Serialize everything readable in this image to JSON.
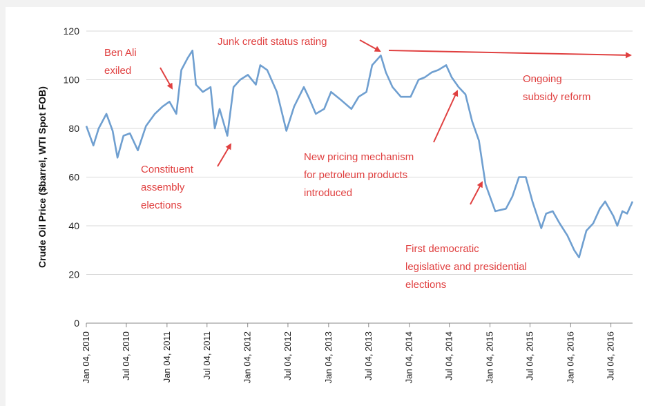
{
  "chart_data": {
    "type": "line",
    "title": "",
    "xlabel": "",
    "ylabel": "Crude Oil Price ($barrel, WTI Spot FOB)",
    "ylim": [
      0,
      120
    ],
    "yticks": [
      "0",
      "20",
      "40",
      "60",
      "80",
      "100",
      "120"
    ],
    "xticks": [
      "Jan 04, 2010",
      "Jul 04, 2010",
      "Jan 04, 2011",
      "Jul 04, 2011",
      "Jan 04, 2012",
      "Jul 04, 2012",
      "Jan 04, 2013",
      "Jul 04, 2013",
      "Jan 04, 2014",
      "Jul 04, 2014",
      "Jan 04, 2015",
      "Jul 04, 2015",
      "Jan 04, 2016",
      "Jul 04, 2016"
    ],
    "grid": true,
    "line_color": "#6f9fd0",
    "annotation_color": "#e04040",
    "series": [
      {
        "x": [
          "2010-01-04",
          "2010-02-05",
          "2010-03-01",
          "2010-04-05",
          "2010-05-03",
          "2010-05-25",
          "2010-06-21",
          "2010-07-20",
          "2010-08-25",
          "2010-10-01",
          "2010-11-10",
          "2010-12-15",
          "2011-01-15",
          "2011-02-15",
          "2011-03-10",
          "2011-04-08",
          "2011-04-29",
          "2011-05-15",
          "2011-06-15",
          "2011-07-20",
          "2011-08-08",
          "2011-08-30",
          "2011-10-04",
          "2011-11-01",
          "2011-12-01",
          "2012-01-05",
          "2012-02-10",
          "2012-03-01",
          "2012-04-01",
          "2012-05-15",
          "2012-06-27",
          "2012-08-01",
          "2012-09-14",
          "2012-10-10",
          "2012-11-07",
          "2012-12-15",
          "2013-01-15",
          "2013-02-25",
          "2013-04-17",
          "2013-05-20",
          "2013-06-24",
          "2013-07-20",
          "2013-08-28",
          "2013-09-20",
          "2013-10-20",
          "2013-11-27",
          "2014-01-10",
          "2014-02-15",
          "2014-03-15",
          "2014-04-15",
          "2014-05-15",
          "2014-06-20",
          "2014-07-15",
          "2014-08-15",
          "2014-09-15",
          "2014-10-15",
          "2014-11-15",
          "2014-12-15",
          "2015-01-28",
          "2015-03-17",
          "2015-04-15",
          "2015-05-15",
          "2015-06-15",
          "2015-07-15",
          "2015-08-24",
          "2015-09-15",
          "2015-10-15",
          "2015-11-15",
          "2015-12-20",
          "2016-01-20",
          "2016-02-11",
          "2016-03-15",
          "2016-04-15",
          "2016-05-15",
          "2016-06-08",
          "2016-07-15",
          "2016-08-02",
          "2016-08-25",
          "2016-09-15",
          "2016-10-10"
        ],
        "y": [
          81,
          73,
          80,
          86,
          79,
          68,
          77,
          78,
          71,
          81,
          86,
          89,
          91,
          86,
          104,
          109,
          112,
          98,
          95,
          97,
          80,
          88,
          77,
          97,
          100,
          102,
          98,
          106,
          104,
          95,
          79,
          89,
          97,
          92,
          86,
          88,
          95,
          92,
          88,
          93,
          95,
          106,
          110,
          103,
          97,
          93,
          93,
          100,
          101,
          103,
          104,
          106,
          101,
          97,
          94,
          83,
          75,
          57,
          46,
          47,
          52,
          60,
          60,
          50,
          39,
          45,
          46,
          41,
          36,
          30,
          27,
          38,
          41,
          47,
          50,
          44,
          40,
          46,
          45,
          50
        ]
      }
    ],
    "annotations": [
      {
        "lines": [
          "Ben Ali",
          "exiled"
        ]
      },
      {
        "lines": [
          "Junk credit status rating"
        ]
      },
      {
        "lines": [
          "Ongoing",
          "subsidy reform"
        ]
      },
      {
        "lines": [
          "Constituent",
          "assembly",
          "elections"
        ]
      },
      {
        "lines": [
          "New pricing mechanism",
          "for petroleum products",
          "introduced"
        ]
      },
      {
        "lines": [
          "First democratic",
          "legislative and presidential",
          "elections"
        ]
      }
    ]
  }
}
